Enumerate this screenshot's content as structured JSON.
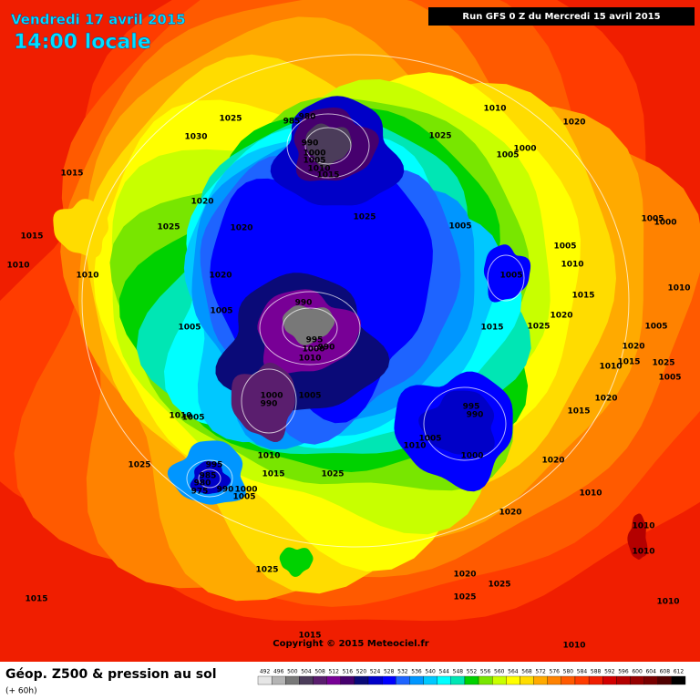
{
  "header": {
    "valid_time": "Vendredi 17 avril 2015",
    "local_time": "14:00 locale",
    "run": "Run GFS 0 Z du Mercredi 15 avril 2015"
  },
  "footer": {
    "title": "Géop. Z500 & pression au sol",
    "lead": "(+ 60h)",
    "copyright": "Copyright © 2015 Meteociel.fr"
  },
  "legend": {
    "values": [
      492,
      496,
      500,
      504,
      508,
      512,
      516,
      520,
      524,
      528,
      532,
      536,
      540,
      544,
      548,
      552,
      556,
      560,
      564,
      568,
      572,
      576,
      580,
      584,
      588,
      592,
      596,
      600,
      604,
      608,
      612
    ],
    "colors": [
      "#e6e6e6",
      "#b4b4b4",
      "#787878",
      "#4b3c5a",
      "#5a1e6e",
      "#780096",
      "#46006e",
      "#0a0a78",
      "#0000c8",
      "#0000ff",
      "#1e64ff",
      "#0096ff",
      "#00c8ff",
      "#00ffff",
      "#00e6b4",
      "#00d200",
      "#78e600",
      "#c8ff00",
      "#ffff00",
      "#ffdc00",
      "#ffaa00",
      "#ff8200",
      "#ff5a00",
      "#ff3c00",
      "#f01e00",
      "#d20000",
      "#b40000",
      "#960000",
      "#780000",
      "#500000",
      "#000000"
    ]
  },
  "pressure_labels": [
    "985",
    "980",
    "990",
    "1000",
    "1005",
    "1010",
    "1015",
    "1025",
    "1030",
    "1015",
    "1020",
    "1025",
    "1020",
    "1015",
    "1010",
    "1010",
    "1020",
    "1005",
    "1005",
    "990",
    "995",
    "1000",
    "1010",
    "990",
    "1025",
    "1025",
    "1010",
    "1020",
    "1000",
    "1005",
    "1005",
    "1005",
    "1010",
    "1005",
    "1015",
    "1015",
    "1025",
    "1020",
    "1005",
    "1005",
    "1000",
    "1010",
    "1020",
    "1015",
    "1010",
    "1025",
    "1005",
    "1000",
    "990",
    "1005",
    "1010",
    "1005",
    "995",
    "990",
    "1005",
    "1010",
    "1000",
    "1010",
    "1015",
    "1025",
    "1025",
    "995",
    "985",
    "980",
    "975",
    "990",
    "1000",
    "1005",
    "1020",
    "1020",
    "1010",
    "1020",
    "1015",
    "1010",
    "1010",
    "1025",
    "1020",
    "1025",
    "1025",
    "1010",
    "1015",
    "1015",
    "1010"
  ]
}
